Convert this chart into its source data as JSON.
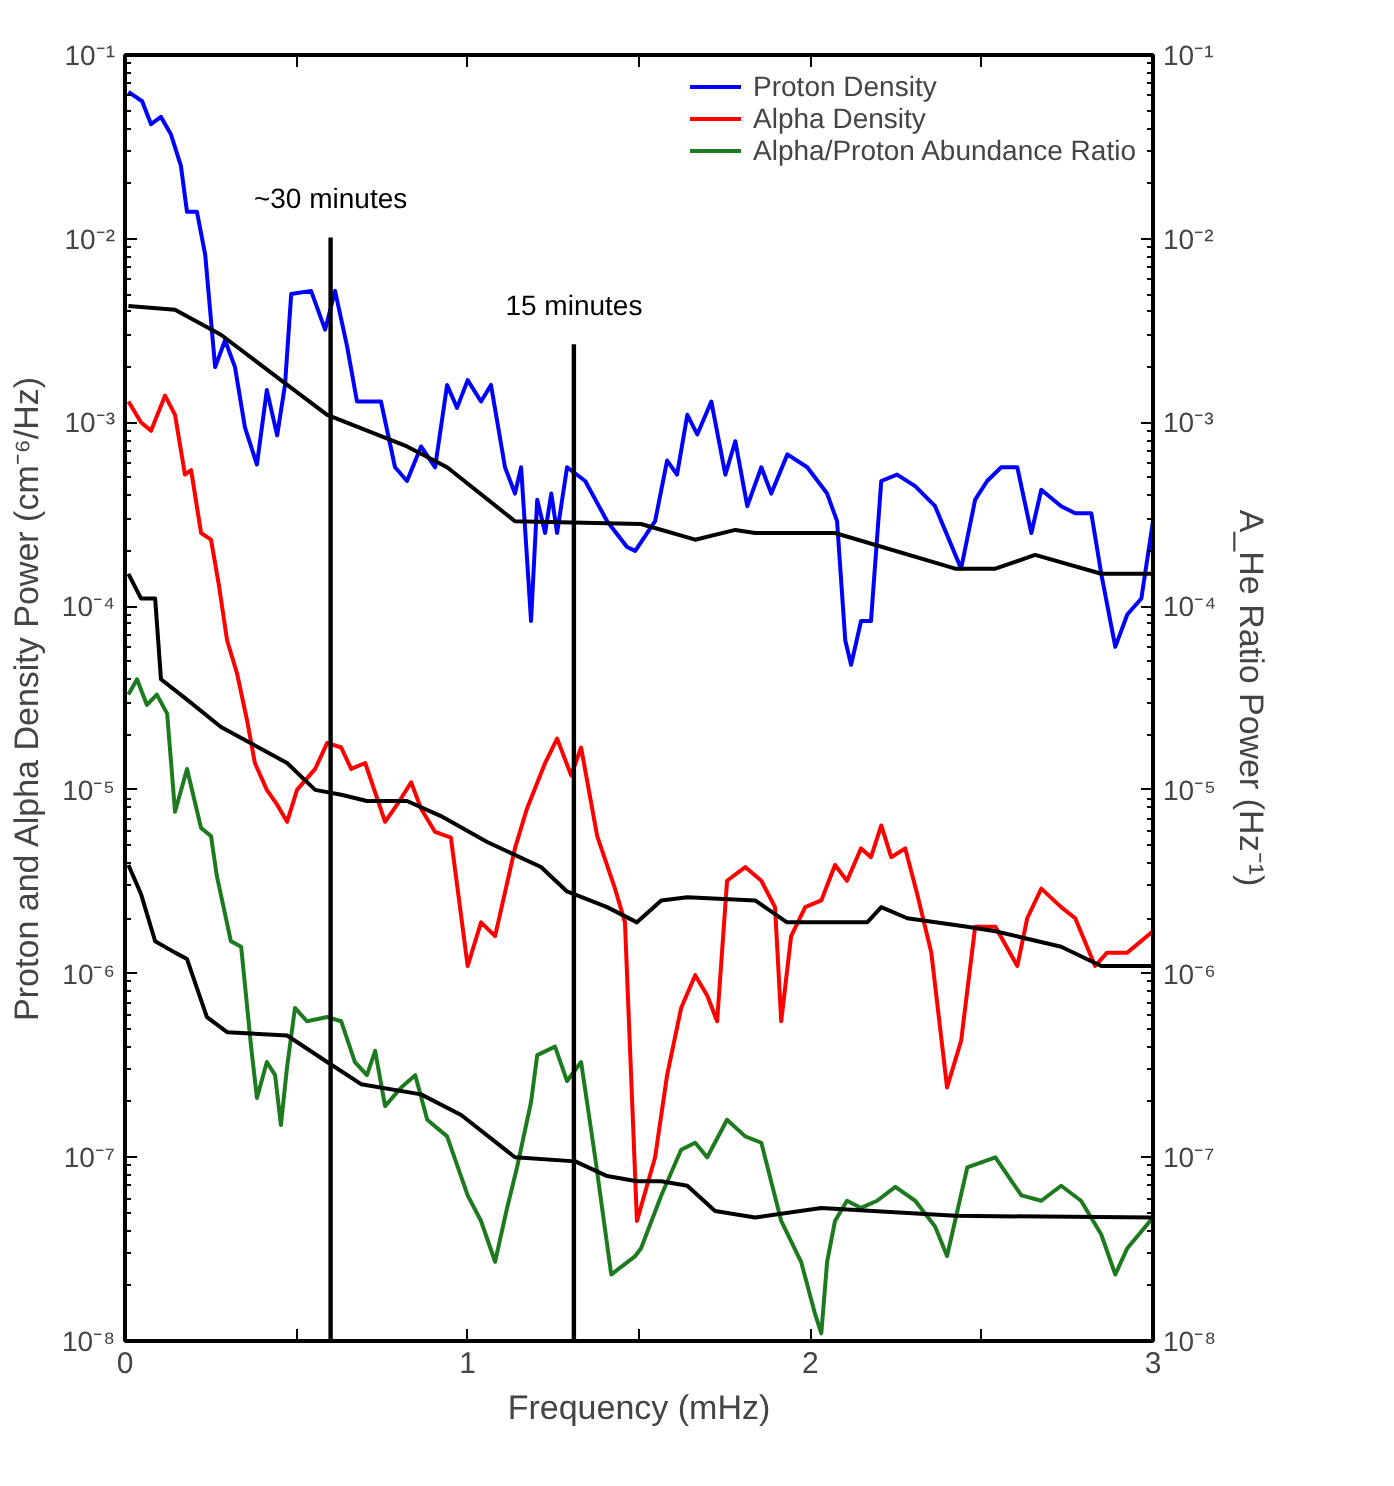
{
  "chart_data": {
    "type": "line",
    "xlabel": "Frequency (mHz)",
    "ylabel": "Proton and Alpha Density Power (cm⁻⁶/Hz)",
    "y2label": "A_He Ratio Power (Hz⁻¹)",
    "log": "y",
    "grid": false,
    "legend": "top right",
    "line_style": "solid",
    "xlim": [
      0,
      3
    ],
    "xticks": [
      0,
      {
        "value": 0.5,
        "label": null
      },
      1,
      {
        "value": 1.5,
        "label": null
      },
      2,
      {
        "value": 2.5,
        "label": null
      },
      3
    ],
    "ylim": [
      1e-08,
      0.1
    ],
    "yticks": [
      {
        "value": 1e-08,
        "label": "10⁻⁸"
      },
      {
        "value": 1e-07,
        "label": "10⁻⁷"
      },
      {
        "value": 1e-06,
        "label": "10⁻⁶"
      },
      {
        "value": 1e-05,
        "label": "10⁻⁵"
      },
      {
        "value": 0.0001,
        "label": "10⁻⁴"
      },
      {
        "value": 0.001,
        "label": "10⁻³"
      },
      {
        "value": 0.01,
        "label": "10⁻²"
      },
      {
        "value": 0.1,
        "label": "10⁻¹"
      }
    ],
    "ref_lines": [
      {
        "axis": "x",
        "value": 0.6,
        "label": "~30 minutes",
        "color": "#000000"
      },
      {
        "axis": "x",
        "value": 1.31,
        "label": "15 minutes",
        "color": "#000000"
      }
    ],
    "series": [
      {
        "name": "Proton Density",
        "color": "#0000ff",
        "x": [
          0.01,
          0.05,
          0.076,
          0.105,
          0.134,
          0.163,
          0.181,
          0.21,
          0.234,
          0.263,
          0.292,
          0.321,
          0.35,
          0.385,
          0.414,
          0.444,
          0.467,
          0.485,
          0.543,
          0.584,
          0.613,
          0.648,
          0.677,
          0.747,
          0.788,
          0.823,
          0.864,
          0.905,
          0.94,
          0.969,
          1.0,
          1.039,
          1.068,
          1.109,
          1.138,
          1.156,
          1.185,
          1.203,
          1.226,
          1.244,
          1.261,
          1.29,
          1.343,
          1.407,
          1.465,
          1.489,
          1.547,
          1.582,
          1.611,
          1.641,
          1.67,
          1.711,
          1.752,
          1.781,
          1.816,
          1.857,
          1.886,
          1.933,
          1.991,
          2.049,
          2.078,
          2.102,
          2.119,
          2.148,
          2.177,
          2.207,
          2.253,
          2.306,
          2.364,
          2.44,
          2.481,
          2.516,
          2.557,
          2.604,
          2.645,
          2.674,
          2.732,
          2.773,
          2.82,
          2.849,
          2.89,
          2.925,
          2.966,
          3.0
        ],
        "values": [
          0.063,
          0.056,
          0.042,
          0.046,
          0.037,
          0.025,
          0.014,
          0.014,
          0.0082,
          0.002,
          0.0028,
          0.002,
          0.00094,
          0.00059,
          0.0015,
          0.00085,
          0.0016,
          0.005,
          0.0052,
          0.0032,
          0.0052,
          0.0026,
          0.0013,
          0.0013,
          0.00057,
          0.00048,
          0.00074,
          0.00057,
          0.0016,
          0.0012,
          0.0017,
          0.0013,
          0.0016,
          0.00057,
          0.00041,
          0.00057,
          8.3e-05,
          0.00038,
          0.00025,
          0.00041,
          0.00025,
          0.00057,
          0.00048,
          0.00029,
          0.00021,
          0.0002,
          0.00029,
          0.00062,
          0.00052,
          0.0011,
          0.00086,
          0.0013,
          0.00052,
          0.00079,
          0.00035,
          0.00057,
          0.00041,
          0.00067,
          0.00057,
          0.00041,
          0.00029,
          6.5e-05,
          4.8e-05,
          8.3e-05,
          8.3e-05,
          0.00048,
          0.00052,
          0.00045,
          0.00035,
          0.00016,
          0.00038,
          0.00048,
          0.00057,
          0.00057,
          0.00025,
          0.00043,
          0.00035,
          0.00032,
          0.00032,
          0.00015,
          6e-05,
          9e-05,
          0.00011,
          0.00029
        ]
      },
      {
        "color": "#000000",
        "x": [
          0.01,
          0.146,
          0.28,
          0.455,
          0.59,
          0.823,
          0.94,
          1.138,
          1.506,
          1.664,
          1.781,
          1.839,
          2.072,
          2.423,
          2.54,
          2.656,
          2.849,
          3.0
        ],
        "values": [
          0.0043,
          0.0041,
          0.003,
          0.0017,
          0.0011,
          0.00074,
          0.00057,
          0.00029,
          0.00028,
          0.00023,
          0.00026,
          0.00025,
          0.00025,
          0.00016,
          0.00016,
          0.00019,
          0.00015,
          0.00015
        ]
      },
      {
        "name": "Alpha Density",
        "color": "#ff0000",
        "x": [
          0.01,
          0.047,
          0.076,
          0.117,
          0.146,
          0.175,
          0.193,
          0.222,
          0.251,
          0.274,
          0.298,
          0.327,
          0.356,
          0.379,
          0.414,
          0.444,
          0.473,
          0.502,
          0.555,
          0.59,
          0.631,
          0.66,
          0.701,
          0.759,
          0.794,
          0.835,
          0.864,
          0.905,
          0.951,
          1.0,
          1.039,
          1.08,
          1.138,
          1.173,
          1.226,
          1.261,
          1.302,
          1.331,
          1.378,
          1.43,
          1.459,
          1.494,
          1.547,
          1.582,
          1.623,
          1.664,
          1.699,
          1.728,
          1.757,
          1.81,
          1.857,
          1.897,
          1.915,
          1.944,
          1.985,
          2.032,
          2.072,
          2.107,
          2.148,
          2.177,
          2.207,
          2.236,
          2.277,
          2.312,
          2.353,
          2.399,
          2.44,
          2.481,
          2.54,
          2.604,
          2.633,
          2.674,
          2.732,
          2.773,
          2.831,
          2.866,
          2.925,
          3.0
        ],
        "values": [
          0.0013,
          0.001,
          0.0009,
          0.0014,
          0.0011,
          0.00052,
          0.00055,
          0.00025,
          0.00023,
          0.00013,
          6.5e-05,
          4.3e-05,
          2.4e-05,
          1.4e-05,
          1e-05,
          8.3e-06,
          6.7e-06,
          1e-05,
          1.3e-05,
          1.8e-05,
          1.7e-05,
          1.3e-05,
          1.4e-05,
          6.7e-06,
          8.3e-06,
          1.1e-05,
          7.9e-06,
          5.9e-06,
          5.5e-06,
          1.1e-06,
          1.9e-06,
          1.6e-06,
          4.8e-06,
          7.9e-06,
          1.4e-05,
          1.9e-05,
          1.2e-05,
          1.7e-05,
          5.6e-06,
          2.9e-06,
          1.9e-06,
          4.5e-08,
          1e-07,
          2.8e-07,
          6.5e-07,
          9.8e-07,
          7.6e-07,
          5.5e-07,
          3.2e-06,
          3.8e-06,
          3.2e-06,
          2.3e-06,
          5.5e-07,
          1.6e-06,
          2.3e-06,
          2.5e-06,
          3.9e-06,
          3.2e-06,
          4.8e-06,
          4.3e-06,
          6.4e-06,
          4.3e-06,
          4.8e-06,
          2.7e-06,
          1.3e-06,
          2.4e-07,
          4.3e-07,
          1.8e-06,
          1.8e-06,
          1.1e-06,
          2e-06,
          2.9e-06,
          2.3e-06,
          2e-06,
          1.1e-06,
          1.3e-06,
          1.3e-06,
          1.7e-06
        ]
      },
      {
        "color": "#000000",
        "x": [
          0.01,
          0.047,
          0.088,
          0.105,
          0.181,
          0.28,
          0.473,
          0.555,
          0.631,
          0.706,
          0.823,
          0.922,
          1.057,
          1.214,
          1.29,
          1.407,
          1.494,
          1.565,
          1.641,
          1.839,
          1.932,
          2.166,
          2.207,
          2.283,
          2.458,
          2.54,
          2.732,
          2.849,
          3.0
        ],
        "values": [
          0.00015,
          0.00011,
          0.00011,
          4e-05,
          3.1e-05,
          2.2e-05,
          1.4e-05,
          1e-05,
          9.4e-06,
          8.7e-06,
          8.7e-06,
          7.2e-06,
          5.2e-06,
          3.8e-06,
          2.8e-06,
          2.3e-06,
          1.9e-06,
          2.5e-06,
          2.6e-06,
          2.5e-06,
          1.9e-06,
          1.9e-06,
          2.3e-06,
          2e-06,
          1.8e-06,
          1.7e-06,
          1.4e-06,
          1.1e-06,
          1.1e-06
        ]
      },
      {
        "name": "Alpha/Proton Abundance Ratio",
        "color": "#1e7a1e",
        "x": [
          0.01,
          0.035,
          0.064,
          0.093,
          0.123,
          0.146,
          0.181,
          0.222,
          0.251,
          0.268,
          0.309,
          0.339,
          0.368,
          0.385,
          0.414,
          0.438,
          0.455,
          0.473,
          0.496,
          0.531,
          0.59,
          0.631,
          0.671,
          0.706,
          0.73,
          0.759,
          0.806,
          0.847,
          0.882,
          0.94,
          1.0,
          1.039,
          1.08,
          1.115,
          1.144,
          1.185,
          1.203,
          1.255,
          1.29,
          1.331,
          1.372,
          1.419,
          1.489,
          1.506,
          1.565,
          1.623,
          1.664,
          1.699,
          1.757,
          1.81,
          1.857,
          1.915,
          1.973,
          2.014,
          2.032,
          2.049,
          2.072,
          2.107,
          2.148,
          2.195,
          2.248,
          2.306,
          2.364,
          2.399,
          2.458,
          2.54,
          2.616,
          2.674,
          2.732,
          2.79,
          2.849,
          2.89,
          2.925,
          3.0
        ],
        "values": [
          3.3e-05,
          4e-05,
          2.9e-05,
          3.3e-05,
          2.6e-05,
          7.6e-06,
          1.3e-05,
          6.2e-06,
          5.6e-06,
          3.4e-06,
          1.5e-06,
          1.4e-06,
          4e-07,
          2.1e-07,
          3.3e-07,
          2.8e-07,
          1.5e-07,
          3.1e-07,
          6.5e-07,
          5.5e-07,
          5.8e-07,
          5.5e-07,
          3.3e-07,
          2.8e-07,
          3.8e-07,
          1.9e-07,
          2.4e-07,
          2.8e-07,
          1.6e-07,
          1.3e-07,
          6.2e-08,
          4.5e-08,
          2.7e-08,
          5.3e-08,
          8.8e-08,
          2e-07,
          3.6e-07,
          4e-07,
          2.6e-07,
          3.3e-07,
          1e-07,
          2.3e-08,
          2.9e-08,
          3.2e-08,
          6.2e-08,
          1.1e-07,
          1.2e-07,
          1e-07,
          1.6e-07,
          1.3e-07,
          1.2e-07,
          4.5e-08,
          2.7e-08,
          1.4e-08,
          1.1e-08,
          2.7e-08,
          4.5e-08,
          5.8e-08,
          5.3e-08,
          5.8e-08,
          6.9e-08,
          5.8e-08,
          4.2e-08,
          2.9e-08,
          8.8e-08,
          1e-07,
          6.2e-08,
          5.8e-08,
          7e-08,
          5.8e-08,
          3.8e-08,
          2.3e-08,
          3.2e-08,
          4.7e-08
        ]
      },
      {
        "color": "#000000",
        "x": [
          0.01,
          0.047,
          0.088,
          0.146,
          0.181,
          0.239,
          0.298,
          0.473,
          0.59,
          0.689,
          0.864,
          0.981,
          1.138,
          1.314,
          1.407,
          1.494,
          1.565,
          1.641,
          1.722,
          1.839,
          2.032,
          2.423,
          3.0
        ],
        "values": [
          3.9e-06,
          2.7e-06,
          1.5e-06,
          1.3e-06,
          1.2e-06,
          5.8e-07,
          4.8e-07,
          4.6e-07,
          3.3e-07,
          2.5e-07,
          2.2e-07,
          1.7e-07,
          1e-07,
          9.5e-08,
          7.9e-08,
          7.4e-08,
          7.4e-08,
          7e-08,
          5.1e-08,
          4.7e-08,
          5.3e-08,
          4.8e-08,
          4.7e-08
        ]
      }
    ]
  }
}
